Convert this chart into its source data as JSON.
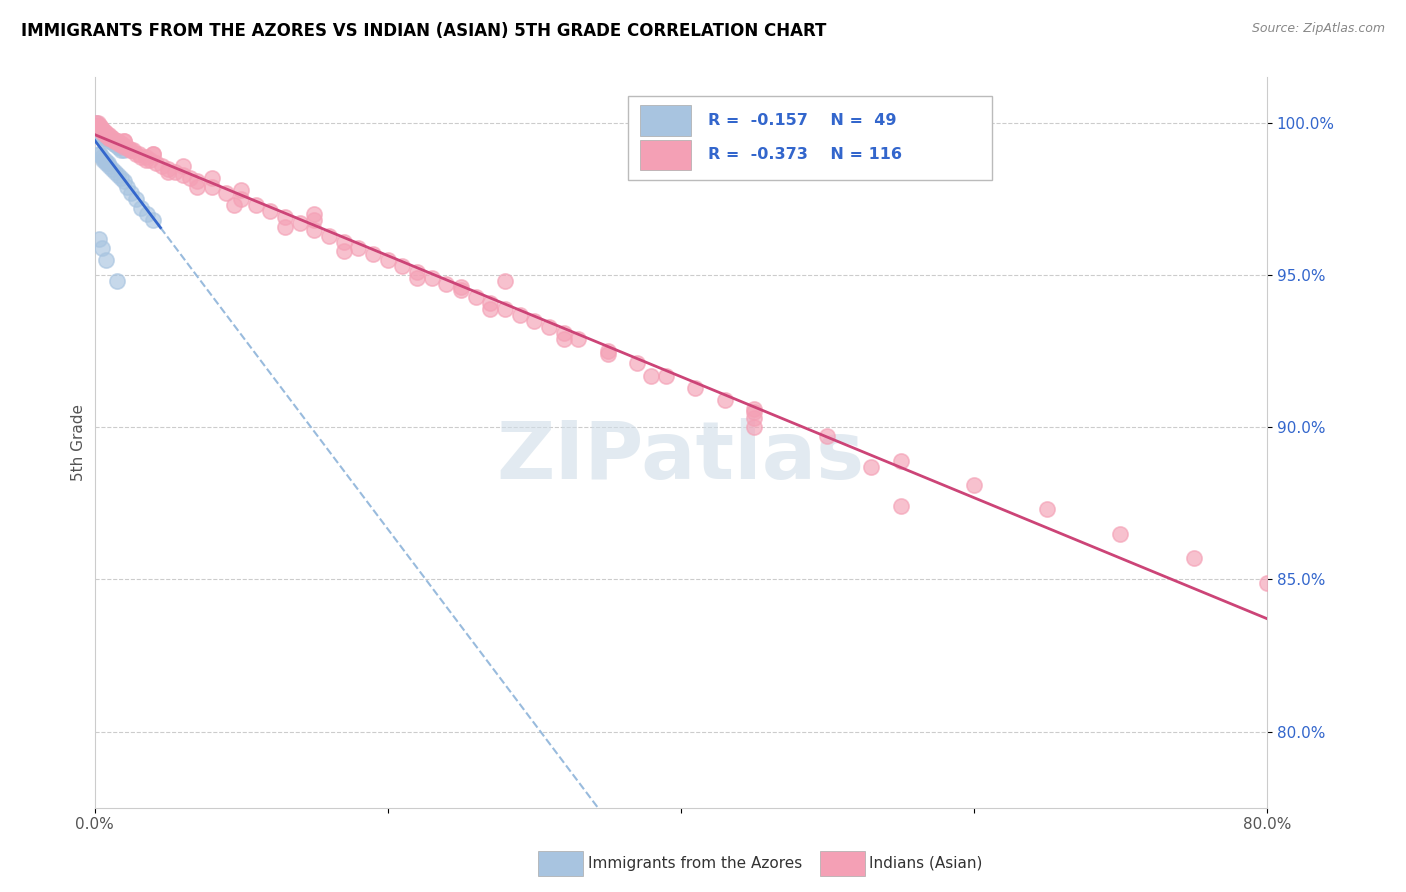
{
  "title": "IMMIGRANTS FROM THE AZORES VS INDIAN (ASIAN) 5TH GRADE CORRELATION CHART",
  "source": "Source: ZipAtlas.com",
  "ylabel": "5th Grade",
  "ytick_labels": [
    "100.0%",
    "95.0%",
    "90.0%",
    "85.0%",
    "80.0%"
  ],
  "ytick_values": [
    1.0,
    0.95,
    0.9,
    0.85,
    0.8
  ],
  "xlim": [
    0.0,
    0.8
  ],
  "ylim": [
    0.775,
    1.015
  ],
  "legend_blue_label": "Immigrants from the Azores",
  "legend_pink_label": "Indians (Asian)",
  "R_blue": -0.157,
  "N_blue": 49,
  "R_pink": -0.373,
  "N_pink": 116,
  "blue_color": "#a8c4e0",
  "pink_color": "#f4a0b5",
  "blue_line_color": "#3366cc",
  "pink_line_color": "#cc4477",
  "blue_dash_color": "#99bbdd",
  "watermark_text": "ZIPatlas",
  "watermark_color": "#d0dde8",
  "blue_x": [
    0.001,
    0.001,
    0.002,
    0.002,
    0.003,
    0.003,
    0.003,
    0.004,
    0.004,
    0.005,
    0.005,
    0.006,
    0.006,
    0.007,
    0.008,
    0.009,
    0.01,
    0.011,
    0.012,
    0.013,
    0.014,
    0.015,
    0.016,
    0.017,
    0.018,
    0.02,
    0.003,
    0.004,
    0.005,
    0.006,
    0.007,
    0.008,
    0.009,
    0.01,
    0.012,
    0.014,
    0.016,
    0.018,
    0.02,
    0.022,
    0.025,
    0.028,
    0.032,
    0.036,
    0.04,
    0.003,
    0.005,
    0.008,
    0.015
  ],
  "blue_y": [
    1.0,
    0.999,
    0.999,
    0.999,
    0.998,
    0.998,
    0.998,
    0.997,
    0.997,
    0.997,
    0.996,
    0.996,
    0.995,
    0.995,
    0.995,
    0.995,
    0.994,
    0.994,
    0.994,
    0.993,
    0.993,
    0.993,
    0.992,
    0.992,
    0.991,
    0.991,
    0.99,
    0.99,
    0.989,
    0.988,
    0.988,
    0.987,
    0.987,
    0.986,
    0.985,
    0.984,
    0.983,
    0.982,
    0.981,
    0.979,
    0.977,
    0.975,
    0.972,
    0.97,
    0.968,
    0.962,
    0.959,
    0.955,
    0.948
  ],
  "pink_x": [
    0.001,
    0.002,
    0.002,
    0.003,
    0.003,
    0.004,
    0.004,
    0.005,
    0.005,
    0.006,
    0.006,
    0.007,
    0.007,
    0.008,
    0.008,
    0.009,
    0.01,
    0.01,
    0.011,
    0.012,
    0.013,
    0.014,
    0.015,
    0.016,
    0.017,
    0.018,
    0.019,
    0.02,
    0.022,
    0.024,
    0.026,
    0.028,
    0.03,
    0.032,
    0.035,
    0.038,
    0.042,
    0.046,
    0.05,
    0.055,
    0.06,
    0.065,
    0.07,
    0.08,
    0.09,
    0.1,
    0.11,
    0.12,
    0.13,
    0.14,
    0.15,
    0.16,
    0.17,
    0.18,
    0.19,
    0.2,
    0.21,
    0.22,
    0.23,
    0.24,
    0.25,
    0.26,
    0.27,
    0.28,
    0.29,
    0.3,
    0.31,
    0.32,
    0.33,
    0.35,
    0.37,
    0.39,
    0.41,
    0.43,
    0.45,
    0.5,
    0.55,
    0.6,
    0.65,
    0.7,
    0.75,
    0.8,
    0.003,
    0.005,
    0.008,
    0.012,
    0.018,
    0.025,
    0.035,
    0.05,
    0.07,
    0.095,
    0.13,
    0.17,
    0.22,
    0.27,
    0.32,
    0.38,
    0.45,
    0.53,
    0.01,
    0.02,
    0.04,
    0.06,
    0.1,
    0.15,
    0.25,
    0.35,
    0.45,
    0.55,
    0.02,
    0.04,
    0.08,
    0.15,
    0.28,
    0.45
  ],
  "pink_y": [
    1.0,
    1.0,
    0.999,
    0.999,
    0.999,
    0.999,
    0.998,
    0.998,
    0.998,
    0.997,
    0.997,
    0.997,
    0.997,
    0.996,
    0.996,
    0.996,
    0.995,
    0.995,
    0.995,
    0.995,
    0.994,
    0.994,
    0.994,
    0.994,
    0.993,
    0.993,
    0.993,
    0.992,
    0.992,
    0.991,
    0.991,
    0.99,
    0.99,
    0.989,
    0.989,
    0.988,
    0.987,
    0.986,
    0.985,
    0.984,
    0.983,
    0.982,
    0.981,
    0.979,
    0.977,
    0.975,
    0.973,
    0.971,
    0.969,
    0.967,
    0.965,
    0.963,
    0.961,
    0.959,
    0.957,
    0.955,
    0.953,
    0.951,
    0.949,
    0.947,
    0.945,
    0.943,
    0.941,
    0.939,
    0.937,
    0.935,
    0.933,
    0.931,
    0.929,
    0.925,
    0.921,
    0.917,
    0.913,
    0.909,
    0.905,
    0.897,
    0.889,
    0.881,
    0.873,
    0.865,
    0.857,
    0.849,
    0.998,
    0.997,
    0.996,
    0.995,
    0.993,
    0.991,
    0.988,
    0.984,
    0.979,
    0.973,
    0.966,
    0.958,
    0.949,
    0.939,
    0.929,
    0.917,
    0.903,
    0.887,
    0.996,
    0.994,
    0.99,
    0.986,
    0.978,
    0.968,
    0.946,
    0.924,
    0.9,
    0.874,
    0.994,
    0.99,
    0.982,
    0.97,
    0.948,
    0.906
  ]
}
